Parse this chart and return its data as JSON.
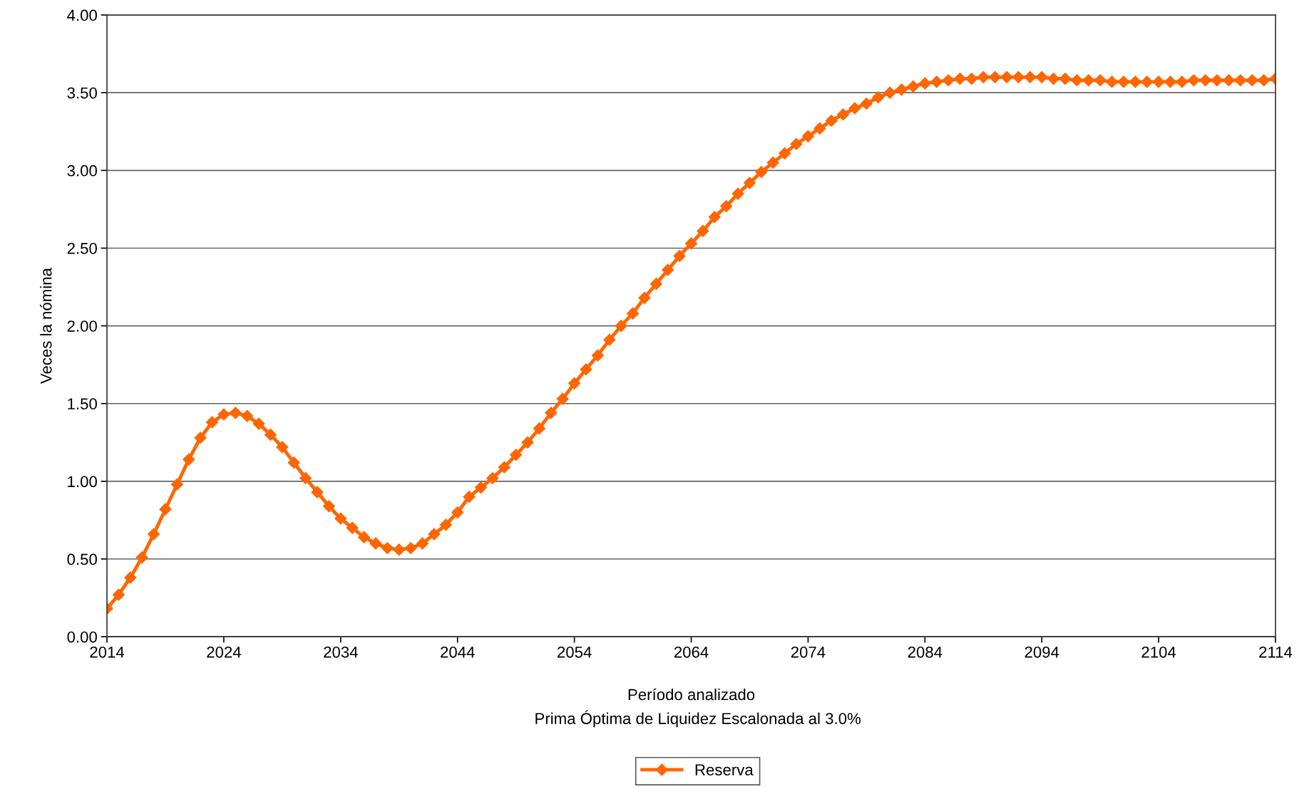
{
  "chart_data": {
    "type": "line",
    "xlabel": "Período analizado",
    "ylabel": "Veces la nómina",
    "annotations": [
      "Prima Óptima de Liquidez Escalonada al 3.0%"
    ],
    "x": [
      2014,
      2015,
      2016,
      2017,
      2018,
      2019,
      2020,
      2021,
      2022,
      2023,
      2024,
      2025,
      2026,
      2027,
      2028,
      2029,
      2030,
      2031,
      2032,
      2033,
      2034,
      2035,
      2036,
      2037,
      2038,
      2039,
      2040,
      2041,
      2042,
      2043,
      2044,
      2045,
      2046,
      2047,
      2048,
      2049,
      2050,
      2051,
      2052,
      2053,
      2054,
      2055,
      2056,
      2057,
      2058,
      2059,
      2060,
      2061,
      2062,
      2063,
      2064,
      2065,
      2066,
      2067,
      2068,
      2069,
      2070,
      2071,
      2072,
      2073,
      2074,
      2075,
      2076,
      2077,
      2078,
      2079,
      2080,
      2081,
      2082,
      2083,
      2084,
      2085,
      2086,
      2087,
      2088,
      2089,
      2090,
      2091,
      2092,
      2093,
      2094,
      2095,
      2096,
      2097,
      2098,
      2099,
      2100,
      2101,
      2102,
      2103,
      2104,
      2105,
      2106,
      2107,
      2108,
      2109,
      2110,
      2111,
      2112,
      2113,
      2114
    ],
    "series": [
      {
        "name": "Reserva",
        "color": "#ff6600",
        "values": [
          0.18,
          0.27,
          0.38,
          0.51,
          0.66,
          0.82,
          0.98,
          1.14,
          1.28,
          1.38,
          1.43,
          1.44,
          1.42,
          1.37,
          1.3,
          1.22,
          1.12,
          1.02,
          0.93,
          0.84,
          0.76,
          0.7,
          0.64,
          0.6,
          0.57,
          0.56,
          0.57,
          0.6,
          0.66,
          0.72,
          0.8,
          0.9,
          0.96,
          1.02,
          1.09,
          1.17,
          1.25,
          1.34,
          1.44,
          1.53,
          1.63,
          1.72,
          1.81,
          1.91,
          2.0,
          2.08,
          2.18,
          2.27,
          2.36,
          2.45,
          2.53,
          2.61,
          2.7,
          2.77,
          2.85,
          2.92,
          2.99,
          3.05,
          3.11,
          3.17,
          3.22,
          3.27,
          3.32,
          3.36,
          3.4,
          3.43,
          3.47,
          3.5,
          3.52,
          3.54,
          3.56,
          3.57,
          3.58,
          3.59,
          3.59,
          3.6,
          3.6,
          3.6,
          3.6,
          3.6,
          3.6,
          3.59,
          3.59,
          3.58,
          3.58,
          3.58,
          3.57,
          3.57,
          3.57,
          3.57,
          3.57,
          3.57,
          3.57,
          3.58,
          3.58,
          3.58,
          3.58,
          3.58,
          3.58,
          3.58,
          3.59
        ]
      }
    ],
    "xlim": [
      2014,
      2114
    ],
    "xticks": [
      2014,
      2024,
      2034,
      2044,
      2054,
      2064,
      2074,
      2084,
      2094,
      2104,
      2114
    ],
    "ylim": [
      0,
      4
    ],
    "yticks": [
      {
        "value": 0,
        "label": "0.00"
      },
      {
        "value": 0.5,
        "label": "0.50"
      },
      {
        "value": 1,
        "label": "1.00"
      },
      {
        "value": 1.5,
        "label": "1.50"
      },
      {
        "value": 2,
        "label": "2.00"
      },
      {
        "value": 2.5,
        "label": "2.50"
      },
      {
        "value": 3,
        "label": "3.00"
      },
      {
        "value": 3.5,
        "label": "3.50"
      },
      {
        "value": 4,
        "label": "4.00"
      }
    ],
    "grid": "y",
    "legend": "bottom",
    "marker": "diamond",
    "line_style": "solid"
  }
}
